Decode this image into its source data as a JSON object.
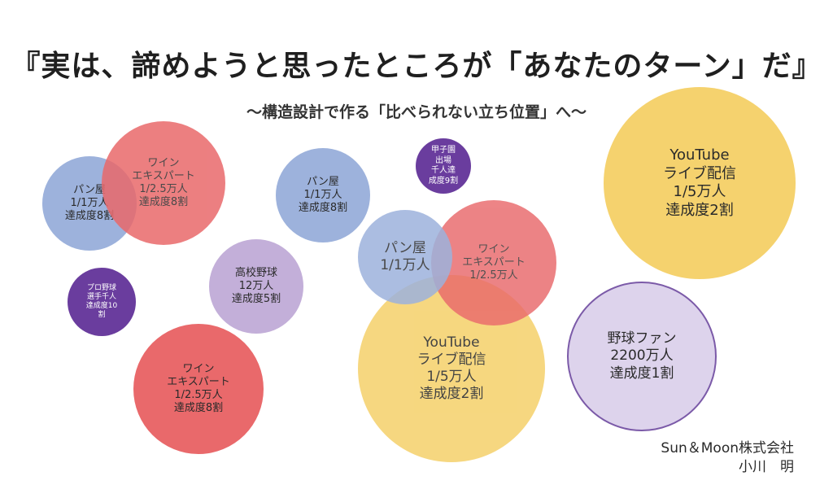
{
  "title": "『実は、諦めようと思ったところが「あなたのターン」だ』",
  "subtitle": "〜構造設計で作る「比べられない立ち位置」へ〜",
  "colors": {
    "blue": "#9db2dc",
    "red": "#e9696b",
    "yellow": "#f5d26e",
    "lavender": "#c3afd9",
    "purple": "#6a3d9e",
    "light_lavender": "#ddd3ec",
    "outline_purple": "#7b5aa8"
  },
  "bubbles": [
    {
      "id": "pan-left",
      "text": "パン屋\n1/1万人\n達成度8割",
      "color": "blue"
    },
    {
      "id": "wine-top-left",
      "text": "ワイン\nエキスパート\n1/2.5万人\n達成度8割",
      "color": "red"
    },
    {
      "id": "pro-baseball",
      "text": "プロ野球\n選手千人\n達成度10\n割",
      "color": "purple"
    },
    {
      "id": "hs-baseball",
      "text": "高校野球\n12万人\n達成度5割",
      "color": "lavender"
    },
    {
      "id": "pan-middle",
      "text": "パン屋\n1/1万人\n達成度8割",
      "color": "blue"
    },
    {
      "id": "koshien",
      "text": "甲子園\n出場\n千人達\n成度9割",
      "color": "purple"
    },
    {
      "id": "wine-bottom-left",
      "text": "ワイン\nエキスパート\n1/2.5万人\n達成度8割",
      "color": "red"
    },
    {
      "id": "youtube-center",
      "text": "YouTube\nライブ配信\n1/5万人\n達成度2割",
      "color": "yellow"
    },
    {
      "id": "wine-center",
      "text": "ワイン\nエキスパート\n1/2.5万人",
      "color": "red"
    },
    {
      "id": "pan-center",
      "text": "パン屋\n1/1万人",
      "color": "blue"
    },
    {
      "id": "youtube-right",
      "text": "YouTube\nライブ配信\n1/5万人\n達成度2割",
      "color": "yellow"
    },
    {
      "id": "baseball-fan",
      "text": "野球ファン\n2200万人\n達成度1割",
      "color": "light_lavender"
    }
  ],
  "credit": {
    "company": "Sun＆Moon株式会社",
    "name": "小川　明"
  }
}
